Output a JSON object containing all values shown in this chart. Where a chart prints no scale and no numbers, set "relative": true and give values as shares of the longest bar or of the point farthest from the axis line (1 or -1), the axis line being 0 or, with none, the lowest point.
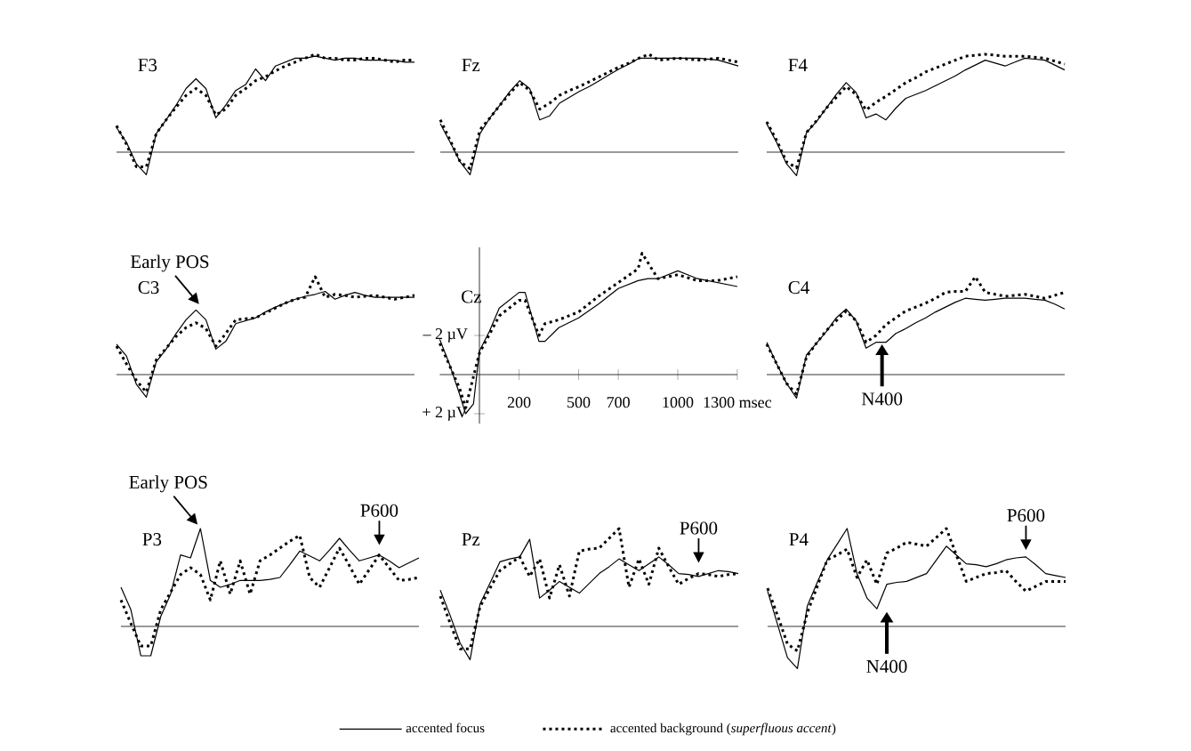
{
  "chart_data": [
    {
      "type": "line",
      "title": "F3",
      "relative": true,
      "categories": [
        null,
        null,
        null,
        null,
        null,
        null,
        null,
        null,
        null,
        null,
        null,
        null,
        null,
        null,
        null,
        null,
        null,
        null,
        null,
        null,
        null,
        null,
        null,
        null,
        null,
        null,
        null,
        null,
        null,
        null,
        null
      ],
      "series": [
        {
          "color": "#000000",
          "line_style": "solid",
          "values": [
            0.25,
            0.1,
            -0.12,
            -0.23,
            0.19,
            0.33,
            0.48,
            0.65,
            0.75,
            0.65,
            0.35,
            0.48,
            0.63,
            0.69,
            0.85,
            0.73,
            0.88,
            0.92,
            0.96,
            0.96,
            0.98,
            0.96,
            0.94,
            0.96,
            0.96,
            0.94,
            0.94,
            0.94,
            0.94,
            0.92,
            0.92
          ]
        },
        {
          "color": "#000000",
          "line_style": "dotted",
          "values": [
            0.27,
            0.08,
            -0.15,
            -0.15,
            0.19,
            0.33,
            0.46,
            0.58,
            0.65,
            0.58,
            0.38,
            0.44,
            0.58,
            0.65,
            0.73,
            0.77,
            0.83,
            0.88,
            0.92,
            0.96,
            1.0,
            0.96,
            0.96,
            0.94,
            0.94,
            0.96,
            0.96,
            0.94,
            0.92,
            0.94,
            0.94
          ]
        }
      ]
    },
    {
      "type": "line",
      "title": "Fz",
      "relative": true,
      "categories": [
        null,
        null,
        null,
        null,
        null,
        null,
        null,
        null,
        null,
        null,
        null,
        null,
        null,
        null,
        null,
        null,
        null,
        null,
        null,
        null,
        null,
        null,
        null,
        null,
        null,
        null,
        null,
        null,
        null,
        null,
        null
      ],
      "series": [
        {
          "color": "#000000",
          "line_style": "solid",
          "values": [
            0.29,
            0.1,
            -0.1,
            -0.23,
            0.19,
            0.35,
            0.48,
            0.62,
            0.73,
            0.65,
            0.33,
            0.37,
            0.5,
            0.56,
            0.62,
            0.67,
            0.73,
            0.79,
            0.85,
            0.9,
            0.96,
            0.96,
            0.96,
            0.96,
            0.96,
            0.96,
            0.96,
            0.95,
            0.94,
            0.91,
            0.88
          ]
        },
        {
          "color": "#000000",
          "line_style": "dotted",
          "values": [
            0.33,
            0.12,
            -0.1,
            -0.17,
            0.23,
            0.35,
            0.48,
            0.6,
            0.71,
            0.63,
            0.44,
            0.5,
            0.58,
            0.63,
            0.67,
            0.72,
            0.77,
            0.82,
            0.87,
            0.91,
            0.96,
            1.0,
            0.94,
            0.95,
            0.96,
            0.95,
            0.94,
            0.95,
            0.96,
            0.94,
            0.92
          ]
        }
      ]
    },
    {
      "type": "line",
      "title": "F4",
      "relative": true,
      "categories": [
        null,
        null,
        null,
        null,
        null,
        null,
        null,
        null,
        null,
        null,
        null,
        null,
        null,
        null,
        null,
        null,
        null,
        null,
        null,
        null,
        null,
        null,
        null,
        null,
        null,
        null,
        null,
        null,
        null,
        null,
        null
      ],
      "series": [
        {
          "color": "#000000",
          "line_style": "solid",
          "values": [
            0.29,
            0.1,
            -0.12,
            -0.24,
            0.2,
            0.31,
            0.45,
            0.59,
            0.71,
            0.61,
            0.35,
            0.39,
            0.33,
            0.45,
            0.55,
            0.59,
            0.63,
            0.68,
            0.73,
            0.78,
            0.84,
            0.89,
            0.94,
            0.91,
            0.88,
            0.92,
            0.96,
            0.95,
            0.94,
            0.89,
            0.84
          ]
        },
        {
          "color": "#000000",
          "line_style": "dotted",
          "values": [
            0.31,
            0.12,
            -0.1,
            -0.16,
            0.2,
            0.32,
            0.45,
            0.56,
            0.67,
            0.59,
            0.43,
            0.51,
            0.57,
            0.64,
            0.71,
            0.76,
            0.82,
            0.86,
            0.9,
            0.94,
            0.98,
            0.99,
            1.0,
            0.99,
            0.98,
            0.98,
            0.98,
            0.97,
            0.96,
            0.93,
            0.9
          ]
        }
      ]
    },
    {
      "type": "line",
      "title": "C3",
      "relative": true,
      "categories": [
        null,
        null,
        null,
        null,
        null,
        null,
        null,
        null,
        null,
        null,
        null,
        null,
        null,
        null,
        null,
        null,
        null,
        null,
        null,
        null,
        null,
        null,
        null,
        null,
        null,
        null,
        null,
        null,
        null,
        null,
        null
      ],
      "annotations": [
        "Early POS"
      ],
      "series": [
        {
          "color": "#000000",
          "line_style": "solid",
          "values": [
            0.31,
            0.19,
            -0.1,
            -0.23,
            0.13,
            0.26,
            0.42,
            0.56,
            0.66,
            0.56,
            0.26,
            0.34,
            0.52,
            0.55,
            0.58,
            0.64,
            0.69,
            0.73,
            0.77,
            0.8,
            0.82,
            0.85,
            0.77,
            0.81,
            0.84,
            0.81,
            0.79,
            0.79,
            0.79,
            0.79,
            0.79
          ]
        },
        {
          "color": "#000000",
          "line_style": "dotted",
          "values": [
            0.29,
            0.11,
            -0.06,
            -0.18,
            0.15,
            0.27,
            0.39,
            0.48,
            0.53,
            0.47,
            0.29,
            0.42,
            0.56,
            0.57,
            0.58,
            0.63,
            0.68,
            0.73,
            0.77,
            0.79,
            1.0,
            0.79,
            0.82,
            0.81,
            0.79,
            0.8,
            0.81,
            0.79,
            0.77,
            0.79,
            0.81
          ]
        }
      ]
    },
    {
      "type": "line",
      "title": "Cz",
      "xlim": [
        -200,
        1300
      ],
      "ylim": [
        2.5,
        -6.5
      ],
      "xticks": [
        200,
        500,
        700,
        1000,
        {
          "value": 1300,
          "label": "1300 msec"
        }
      ],
      "yticks": [
        {
          "value": -2,
          "label": "– 2 µV"
        },
        {
          "value": 2,
          "label": "+ 2 µV"
        }
      ],
      "series": [
        {
          "color": "#000000",
          "line_style": "solid",
          "x": [
            -200,
            -150,
            -100,
            -70,
            -30,
            0,
            50,
            100,
            150,
            200,
            230,
            300,
            330,
            400,
            500,
            600,
            700,
            800,
            850,
            900,
            1000,
            1100,
            1200,
            1300
          ],
          "values": [
            -1.8,
            -0.5,
            1.0,
            2.0,
            1.5,
            -1.2,
            -2.2,
            -3.4,
            -3.8,
            -4.2,
            -4.2,
            -1.7,
            -1.7,
            -2.4,
            -2.9,
            -3.6,
            -4.4,
            -4.8,
            -4.9,
            -4.9,
            -5.3,
            -4.9,
            -4.7,
            -4.5
          ]
        },
        {
          "color": "#000000",
          "line_style": "dotted",
          "x": [
            -200,
            -100,
            -70,
            0,
            100,
            200,
            230,
            300,
            330,
            400,
            500,
            600,
            700,
            800,
            820,
            900,
            1000,
            1100,
            1200,
            1300
          ],
          "values": [
            -1.6,
            0.7,
            1.7,
            -1.1,
            -3.0,
            -3.8,
            -3.8,
            -2.0,
            -2.6,
            -2.8,
            -3.2,
            -4.0,
            -4.7,
            -5.4,
            -6.2,
            -4.9,
            -5.1,
            -4.8,
            -4.8,
            -5.0
          ]
        }
      ]
    },
    {
      "type": "line",
      "title": "C4",
      "relative": true,
      "categories": [
        null,
        null,
        null,
        null,
        null,
        null,
        null,
        null,
        null,
        null,
        null,
        null,
        null,
        null,
        null,
        null,
        null,
        null,
        null,
        null,
        null,
        null,
        null,
        null,
        null,
        null,
        null,
        null,
        null,
        null,
        null
      ],
      "annotations": [
        "N400"
      ],
      "series": [
        {
          "color": "#000000",
          "line_style": "solid",
          "values": [
            0.33,
            0.11,
            -0.09,
            -0.24,
            0.2,
            0.32,
            0.44,
            0.58,
            0.67,
            0.55,
            0.27,
            0.33,
            0.33,
            0.42,
            0.47,
            0.53,
            0.58,
            0.64,
            0.69,
            0.74,
            0.78,
            0.77,
            0.76,
            0.77,
            0.78,
            0.78,
            0.78,
            0.77,
            0.76,
            0.72,
            0.67
          ]
        },
        {
          "color": "#000000",
          "line_style": "dotted",
          "values": [
            0.31,
            0.11,
            -0.09,
            -0.2,
            0.18,
            0.32,
            0.45,
            0.55,
            0.65,
            0.55,
            0.33,
            0.4,
            0.51,
            0.58,
            0.65,
            0.69,
            0.73,
            0.78,
            0.84,
            0.85,
            0.85,
            1.0,
            0.84,
            0.82,
            0.8,
            0.81,
            0.82,
            0.8,
            0.78,
            0.81,
            0.84
          ]
        }
      ]
    },
    {
      "type": "line",
      "title": "P3",
      "relative": true,
      "categories": [
        null,
        null,
        null,
        null,
        null,
        null,
        null,
        null,
        null,
        null,
        null,
        null,
        null,
        null,
        null,
        null,
        null,
        null,
        null,
        null,
        null,
        null,
        null,
        null,
        null,
        null,
        null,
        null,
        null,
        null,
        null
      ],
      "annotations": [
        "Early POS",
        "P600"
      ],
      "series": [
        {
          "color": "#000000",
          "line_style": "solid",
          "values": [
            0.4,
            0.17,
            -0.3,
            -0.3,
            0.1,
            0.33,
            0.73,
            0.7,
            1.0,
            0.47,
            0.4,
            0.43,
            0.47,
            0.47,
            0.47,
            0.48,
            0.5,
            0.63,
            0.77,
            0.72,
            0.67,
            0.78,
            0.9,
            0.78,
            0.67,
            0.7,
            0.73,
            0.67,
            0.6,
            0.65,
            0.7
          ]
        },
        {
          "color": "#000000",
          "line_style": "dotted",
          "values": [
            0.27,
            0.03,
            -0.2,
            -0.2,
            0.17,
            0.35,
            0.53,
            0.6,
            0.53,
            0.27,
            0.67,
            0.33,
            0.67,
            0.33,
            0.67,
            0.73,
            0.8,
            0.87,
            0.93,
            0.5,
            0.4,
            0.6,
            0.8,
            0.62,
            0.43,
            0.58,
            0.73,
            0.6,
            0.47,
            0.48,
            0.5
          ]
        }
      ]
    },
    {
      "type": "line",
      "title": "Pz",
      "relative": true,
      "legend": "bottom",
      "categories": [
        null,
        null,
        null,
        null,
        null,
        null,
        null,
        null,
        null,
        null,
        null,
        null,
        null,
        null,
        null,
        null,
        null,
        null,
        null,
        null,
        null,
        null,
        null,
        null,
        null,
        null,
        null,
        null,
        null,
        null,
        null
      ],
      "annotations": [
        "P600"
      ],
      "series": [
        {
          "name": "accented focus",
          "color": "#000000",
          "line_style": "solid",
          "values": [
            0.37,
            0.11,
            -0.17,
            -0.34,
            0.23,
            0.44,
            0.66,
            0.69,
            0.71,
            0.89,
            0.29,
            0.37,
            0.46,
            0.4,
            0.34,
            0.44,
            0.54,
            0.61,
            0.69,
            0.63,
            0.57,
            0.64,
            0.71,
            0.63,
            0.54,
            0.53,
            0.51,
            0.54,
            0.57,
            0.56,
            0.54
          ]
        },
        {
          "name": "accented background (*superfluous accent*)",
          "color": "#000000",
          "line_style": "dotted",
          "values": [
            0.31,
            0.03,
            -0.23,
            -0.23,
            0.2,
            0.39,
            0.57,
            0.64,
            0.71,
            0.51,
            0.69,
            0.29,
            0.63,
            0.31,
            0.77,
            0.79,
            0.8,
            0.9,
            1.0,
            0.4,
            0.69,
            0.43,
            0.8,
            0.61,
            0.43,
            0.49,
            0.54,
            0.53,
            0.51,
            0.53,
            0.54
          ]
        }
      ]
    },
    {
      "type": "line",
      "title": "P4",
      "relative": true,
      "categories": [
        null,
        null,
        null,
        null,
        null,
        null,
        null,
        null,
        null,
        null,
        null,
        null,
        null,
        null,
        null,
        null,
        null,
        null,
        null,
        null,
        null,
        null,
        null,
        null,
        null,
        null,
        null,
        null,
        null,
        null,
        null
      ],
      "annotations": [
        "N400",
        "P600"
      ],
      "series": [
        {
          "color": "#000000",
          "line_style": "solid",
          "values": [
            0.36,
            0.02,
            -0.32,
            -0.43,
            0.21,
            0.45,
            0.68,
            0.84,
            1.0,
            0.54,
            0.29,
            0.18,
            0.43,
            0.45,
            0.46,
            0.5,
            0.54,
            0.68,
            0.82,
            0.73,
            0.64,
            0.63,
            0.61,
            0.64,
            0.68,
            0.7,
            0.71,
            0.63,
            0.54,
            0.52,
            0.5
          ]
        },
        {
          "color": "#000000",
          "line_style": "dotted",
          "values": [
            0.39,
            0.11,
            -0.18,
            -0.25,
            0.14,
            0.41,
            0.68,
            0.73,
            0.79,
            0.5,
            0.68,
            0.43,
            0.75,
            0.8,
            0.86,
            0.84,
            0.82,
            0.91,
            1.0,
            0.73,
            0.46,
            0.5,
            0.54,
            0.55,
            0.57,
            0.46,
            0.36,
            0.41,
            0.46,
            0.46,
            0.46
          ]
        }
      ]
    }
  ]
}
